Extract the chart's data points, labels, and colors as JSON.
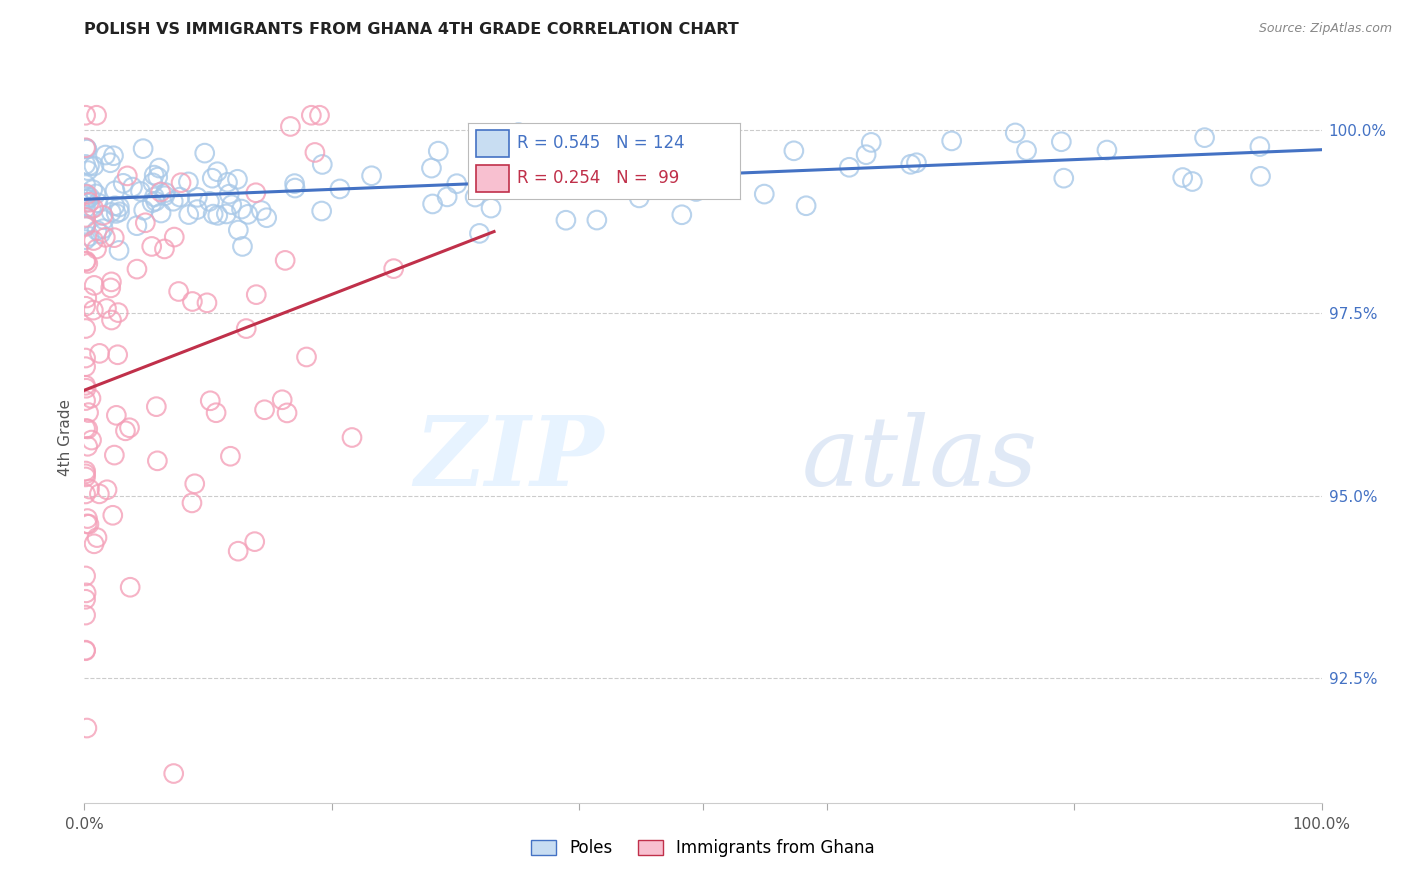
{
  "title": "POLISH VS IMMIGRANTS FROM GHANA 4TH GRADE CORRELATION CHART",
  "source": "Source: ZipAtlas.com",
  "ylabel": "4th Grade",
  "ylabel_right_ticks": [
    "100.0%",
    "97.5%",
    "95.0%",
    "92.5%"
  ],
  "ylabel_right_values": [
    1.0,
    0.975,
    0.95,
    0.925
  ],
  "legend_blue_label": "Poles",
  "legend_pink_label": "Immigrants from Ghana",
  "R_blue": 0.545,
  "N_blue": 124,
  "R_pink": 0.254,
  "N_pink": 99,
  "blue_color": "#a8c8e8",
  "pink_color": "#f4a0b8",
  "blue_line_color": "#4472c4",
  "pink_line_color": "#c0304a",
  "watermark_zip": "ZIP",
  "watermark_atlas": "atlas",
  "xlim": [
    0.0,
    1.0
  ],
  "ylim": [
    0.908,
    1.008
  ]
}
